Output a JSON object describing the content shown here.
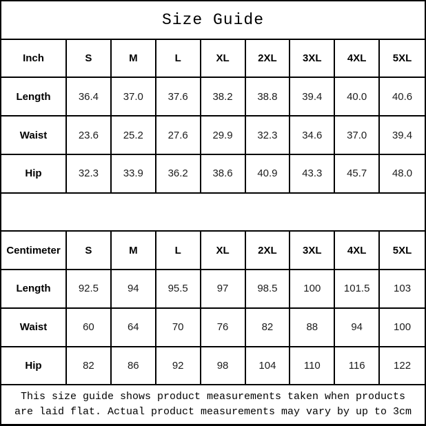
{
  "title": "Size Guide",
  "tables": [
    {
      "unit": "Inch",
      "sizes": [
        "S",
        "M",
        "L",
        "XL",
        "2XL",
        "3XL",
        "4XL",
        "5XL"
      ],
      "rows": [
        {
          "label": "Length",
          "values": [
            "36.4",
            "37.0",
            "37.6",
            "38.2",
            "38.8",
            "39.4",
            "40.0",
            "40.6"
          ]
        },
        {
          "label": "Waist",
          "values": [
            "23.6",
            "25.2",
            "27.6",
            "29.9",
            "32.3",
            "34.6",
            "37.0",
            "39.4"
          ]
        },
        {
          "label": "Hip",
          "values": [
            "32.3",
            "33.9",
            "36.2",
            "38.6",
            "40.9",
            "43.3",
            "45.7",
            "48.0"
          ]
        }
      ]
    },
    {
      "unit": "Centimeter",
      "sizes": [
        "S",
        "M",
        "L",
        "XL",
        "2XL",
        "3XL",
        "4XL",
        "5XL"
      ],
      "rows": [
        {
          "label": "Length",
          "values": [
            "92.5",
            "94",
            "95.5",
            "97",
            "98.5",
            "100",
            "101.5",
            "103"
          ]
        },
        {
          "label": "Waist",
          "values": [
            "60",
            "64",
            "70",
            "76",
            "82",
            "88",
            "94",
            "100"
          ]
        },
        {
          "label": "Hip",
          "values": [
            "82",
            "86",
            "92",
            "98",
            "104",
            "110",
            "116",
            "122"
          ]
        }
      ]
    }
  ],
  "footer": {
    "line1": "This size guide shows product measurements taken when products",
    "line2": "are laid flat. Actual product measurements may vary by up to 3cm"
  },
  "colors": {
    "border": "#000000",
    "background": "#ffffff",
    "text": "#1c1c1c"
  },
  "chart_data": [
    {
      "type": "table",
      "title": "Size Guide",
      "unit": "Inch",
      "columns": [
        "Inch",
        "S",
        "M",
        "L",
        "XL",
        "2XL",
        "3XL",
        "4XL",
        "5XL"
      ],
      "rows": [
        [
          "Length",
          36.4,
          37.0,
          37.6,
          38.2,
          38.8,
          39.4,
          40.0,
          40.6
        ],
        [
          "Waist",
          23.6,
          25.2,
          27.6,
          29.9,
          32.3,
          34.6,
          37.0,
          39.4
        ],
        [
          "Hip",
          32.3,
          33.9,
          36.2,
          38.6,
          40.9,
          43.3,
          45.7,
          48.0
        ]
      ]
    },
    {
      "type": "table",
      "title": "Size Guide",
      "unit": "Centimeter",
      "columns": [
        "Centimeter",
        "S",
        "M",
        "L",
        "XL",
        "2XL",
        "3XL",
        "4XL",
        "5XL"
      ],
      "rows": [
        [
          "Length",
          92.5,
          94,
          95.5,
          97,
          98.5,
          100,
          101.5,
          103
        ],
        [
          "Waist",
          60,
          64,
          70,
          76,
          82,
          88,
          94,
          100
        ],
        [
          "Hip",
          82,
          86,
          92,
          98,
          104,
          110,
          116,
          122
        ]
      ]
    }
  ]
}
